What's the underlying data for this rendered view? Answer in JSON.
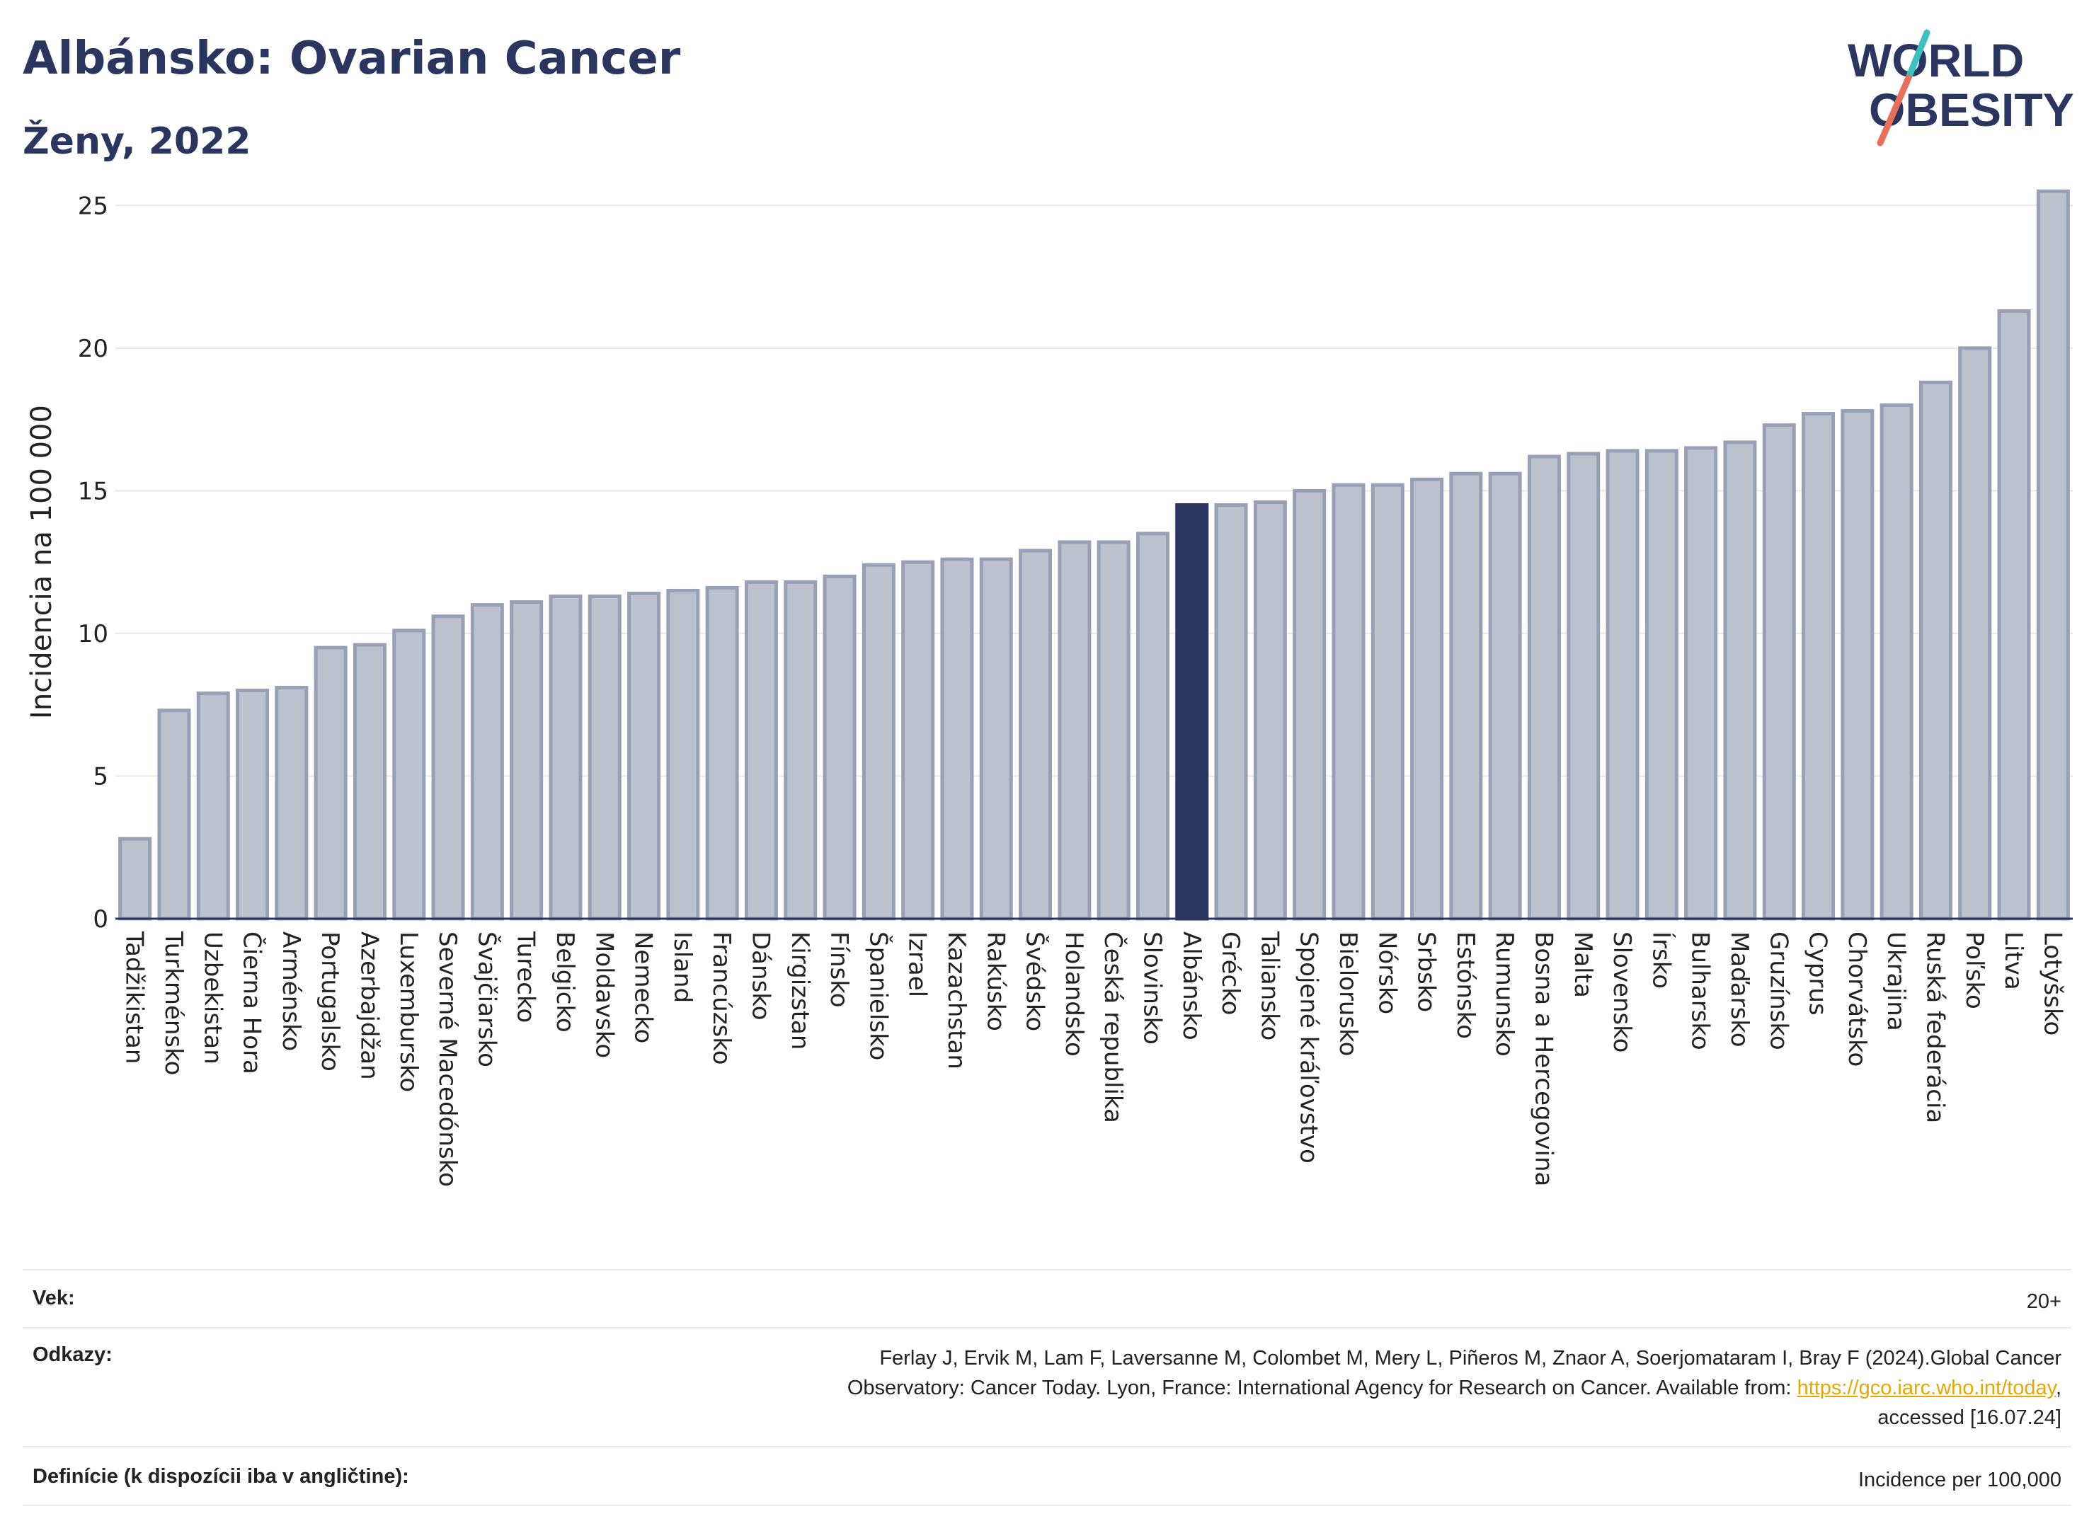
{
  "header": {
    "title": "Albánsko: Ovarian Cancer",
    "subtitle": "Ženy, 2022"
  },
  "logo": {
    "line1": "WORLD",
    "line2": "OBESITY"
  },
  "colors": {
    "bar": "#bcc1ce",
    "bar_border": "#98a0b6",
    "highlight": "#2b3660",
    "title": "#2b3660",
    "link": "#e6a800"
  },
  "chart_data": {
    "type": "bar",
    "ylabel": "Incidencia na 100 000",
    "ylim": [
      0,
      26
    ],
    "yticks": [
      0,
      5,
      10,
      15,
      20,
      25
    ],
    "grid": true,
    "highlight": "Albánsko",
    "categories": [
      "Tadžikistan",
      "Turkménsko",
      "Uzbekistan",
      "Čierna Hora",
      "Arménsko",
      "Portugalsko",
      "Azerbajdžan",
      "Luxembursko",
      "Severné Macedónsko",
      "Švajčiarsko",
      "Turecko",
      "Belgicko",
      "Moldavsko",
      "Nemecko",
      "Island",
      "Francúzsko",
      "Dánsko",
      "Kirgizstan",
      "Fínsko",
      "Španielsko",
      "Izrael",
      "Kazachstan",
      "Rakúsko",
      "Švédsko",
      "Holandsko",
      "Česká republika",
      "Slovinsko",
      "Albánsko",
      "Grécko",
      "Taliansko",
      "Spojené kráľovstvo",
      "Bielorusko",
      "Nórsko",
      "Srbsko",
      "Estónsko",
      "Rumunsko",
      "Bosna a Hercegovina",
      "Malta",
      "Slovensko",
      "Írsko",
      "Bulharsko",
      "Maďarsko",
      "Gruzínsko",
      "Cyprus",
      "Chorvátsko",
      "Ukrajina",
      "Ruská federácia",
      "Poľsko",
      "Litva",
      "Lotyšsko"
    ],
    "values": [
      2.8,
      7.3,
      7.9,
      8.0,
      8.1,
      9.5,
      9.6,
      10.1,
      10.6,
      11.0,
      11.1,
      11.3,
      11.3,
      11.4,
      11.5,
      11.6,
      11.8,
      11.8,
      12.0,
      12.4,
      12.5,
      12.6,
      12.6,
      12.9,
      13.2,
      13.2,
      13.5,
      14.5,
      14.5,
      14.6,
      15.0,
      15.2,
      15.2,
      15.4,
      15.6,
      15.6,
      16.2,
      16.3,
      16.4,
      16.4,
      16.5,
      16.7,
      17.3,
      17.7,
      17.8,
      18.0,
      18.8,
      20.0,
      21.3,
      25.5
    ]
  },
  "info": {
    "age_label": "Vek:",
    "age_value": "20+",
    "refs_label": "Odkazy:",
    "refs_line1": "Ferlay J, Ervik M, Lam F, Laversanne M, Colombet M, Mery L, Piñeros M, Znaor A, Soerjomataram I, Bray F (2024).Global Cancer",
    "refs_line2_pre": "Observatory: Cancer Today. Lyon, France: International Agency for Research on Cancer. Available from: ",
    "refs_link": "https://gco.iarc.who.int/today",
    "refs_line2_post": ",",
    "refs_line3": "accessed [16.07.24]",
    "def_label": "Definície (k dispozícii iba v angličtine):",
    "def_value": "Incidence per 100,000"
  }
}
